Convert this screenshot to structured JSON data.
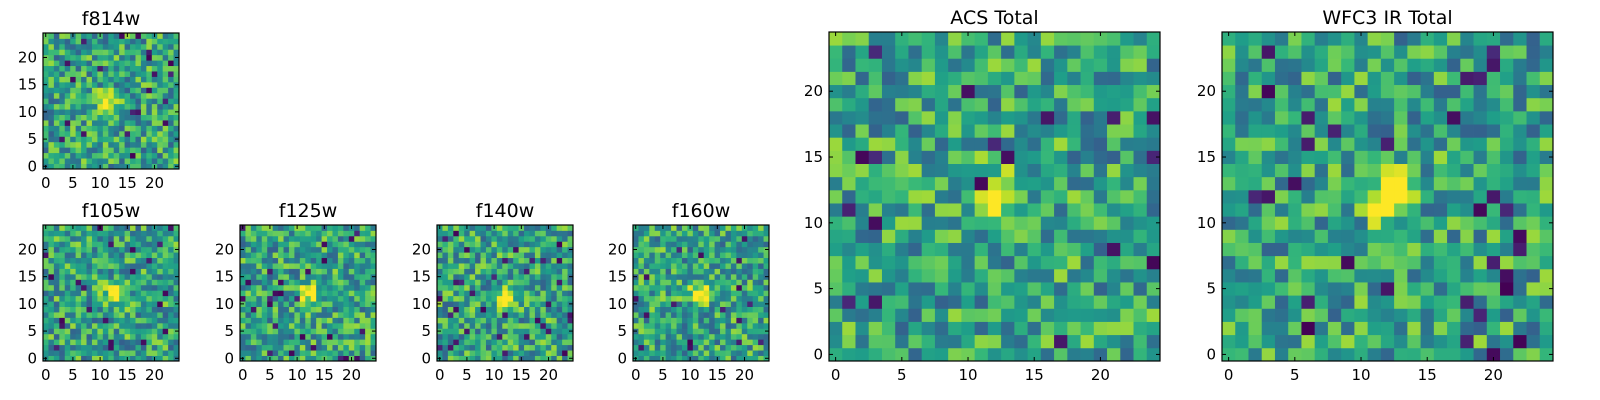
{
  "chart_data": [
    {
      "type": "heatmap",
      "title": "f814w",
      "x_ticks": [
        "0",
        "5",
        "10",
        "15",
        "20"
      ],
      "y_ticks": [
        "0",
        "5",
        "10",
        "15",
        "20"
      ],
      "xlim": [
        0,
        25
      ],
      "ylim": [
        0,
        25
      ],
      "grid_size": 25,
      "source_peak": [
        11,
        12
      ],
      "colormap": "viridis"
    },
    {
      "type": "heatmap",
      "title": "f105w",
      "x_ticks": [
        "0",
        "5",
        "10",
        "15",
        "20"
      ],
      "y_ticks": [
        "0",
        "5",
        "10",
        "15",
        "20"
      ],
      "xlim": [
        0,
        25
      ],
      "ylim": [
        0,
        25
      ],
      "grid_size": 25,
      "source_peak": [
        13,
        12
      ],
      "colormap": "viridis"
    },
    {
      "type": "heatmap",
      "title": "f125w",
      "x_ticks": [
        "0",
        "5",
        "10",
        "15",
        "20"
      ],
      "y_ticks": [
        "0",
        "5",
        "10",
        "15",
        "20"
      ],
      "xlim": [
        0,
        25
      ],
      "ylim": [
        0,
        25
      ],
      "grid_size": 25,
      "source_peak": [
        12,
        12
      ],
      "colormap": "viridis"
    },
    {
      "type": "heatmap",
      "title": "f140w",
      "x_ticks": [
        "0",
        "5",
        "10",
        "15",
        "20"
      ],
      "y_ticks": [
        "0",
        "5",
        "10",
        "15",
        "20"
      ],
      "xlim": [
        0,
        25
      ],
      "ylim": [
        0,
        25
      ],
      "grid_size": 25,
      "source_peak": [
        12,
        11
      ],
      "colormap": "viridis"
    },
    {
      "type": "heatmap",
      "title": "f160w",
      "x_ticks": [
        "0",
        "5",
        "10",
        "15",
        "20"
      ],
      "y_ticks": [
        "0",
        "5",
        "10",
        "15",
        "20"
      ],
      "xlim": [
        0,
        25
      ],
      "ylim": [
        0,
        25
      ],
      "grid_size": 25,
      "source_peak": [
        12,
        12
      ],
      "colormap": "viridis"
    },
    {
      "type": "heatmap",
      "title": "ACS Total",
      "x_ticks": [
        "0",
        "5",
        "10",
        "15",
        "20"
      ],
      "y_ticks": [
        "0",
        "5",
        "10",
        "15",
        "20"
      ],
      "xlim": [
        0,
        25
      ],
      "ylim": [
        0,
        25
      ],
      "grid_size": 25,
      "source_peak": [
        12,
        12
      ],
      "colormap": "viridis"
    },
    {
      "type": "heatmap",
      "title": "WFC3 IR Total",
      "x_ticks": [
        "0",
        "5",
        "10",
        "15",
        "20"
      ],
      "y_ticks": [
        "0",
        "5",
        "10",
        "15",
        "20"
      ],
      "xlim": [
        0,
        25
      ],
      "ylim": [
        0,
        25
      ],
      "grid_size": 25,
      "source_peak": [
        12,
        12
      ],
      "colormap": "viridis"
    }
  ]
}
